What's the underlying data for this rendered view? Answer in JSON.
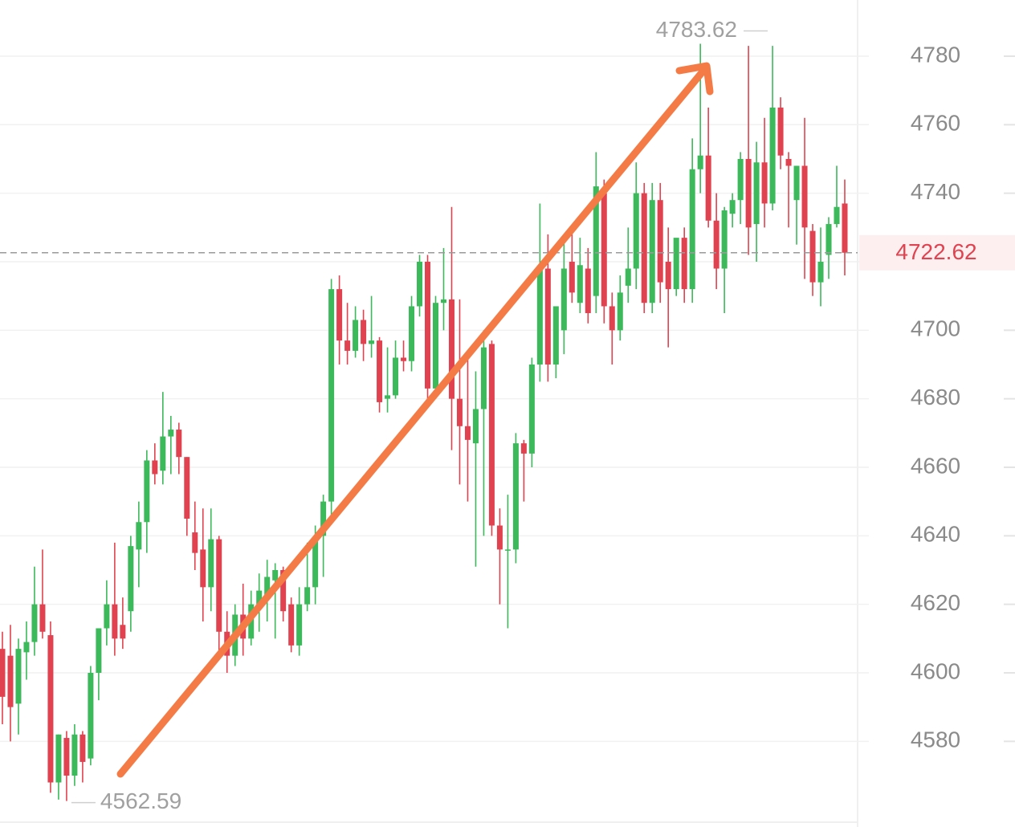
{
  "chart_data": {
    "type": "candlestick",
    "up_color": "#3cb95a",
    "down_color": "#e0434f",
    "ylim": [
      4555,
      4796.4
    ],
    "yticks": [
      4580,
      4600,
      4620,
      4640,
      4660,
      4680,
      4700,
      4720,
      4740,
      4760,
      4780
    ],
    "grid": true,
    "open": [
      4607,
      4605,
      4591,
      4606,
      4609,
      4620,
      4611,
      4568,
      4581,
      4570,
      4582,
      4575,
      4600,
      4613,
      4620,
      4614,
      4618,
      4636,
      4644,
      4662,
      4659,
      4669,
      4671,
      4663,
      4641,
      4636,
      4625,
      4639,
      4612,
      4605,
      4617,
      4610,
      4620,
      4622,
      4627,
      4630,
      4620,
      4608,
      4620,
      4625,
      4640,
      4650,
      4712,
      4697,
      4694,
      4703,
      4696,
      4697,
      4680,
      4681,
      4692,
      4691,
      4707,
      4720,
      4683,
      4708,
      4709,
      4680,
      4672,
      4667,
      4677,
      4696,
      4643,
      4636,
      4636,
      4667,
      4664,
      4690,
      4718,
      4690,
      4700,
      4720,
      4708,
      4718,
      4710,
      4740,
      4707,
      4700,
      4713,
      4718,
      4740,
      4708,
      4738,
      4720,
      4712,
      4727,
      4712,
      4747,
      4751,
      4732,
      4718,
      4734,
      4738,
      4750,
      4731,
      4749,
      4737,
      4765,
      4750,
      4738,
      4748,
      4729,
      4714,
      4722,
      4731,
      4737
    ],
    "high": [
      4612,
      4614,
      4610,
      4615,
      4631,
      4636,
      4615,
      4582,
      4583,
      4585,
      4583,
      4602,
      4613,
      4627,
      4638,
      4622,
      4640,
      4650,
      4665,
      4667,
      4682,
      4675,
      4673,
      4663,
      4650,
      4648,
      4648,
      4640,
      4618,
      4620,
      4626,
      4624,
      4629,
      4633,
      4632,
      4631,
      4622,
      4625,
      4638,
      4643,
      4652,
      4715,
      4716,
      4708,
      4707,
      4706,
      4710,
      4698,
      4695,
      4697,
      4697,
      4710,
      4722,
      4722,
      4710,
      4724,
      4736,
      4709,
      4692,
      4688,
      4700,
      4697,
      4648,
      4652,
      4670,
      4668,
      4692,
      4737,
      4728,
      4706,
      4726,
      4728,
      4727,
      4724,
      4752,
      4744,
      4711,
      4716,
      4730,
      4749,
      4743,
      4743,
      4743,
      4730,
      4726,
      4730,
      4756,
      4783.62,
      4765,
      4740,
      4736,
      4740,
      4752,
      4783,
      4755,
      4762,
      4783,
      4768,
      4752,
      4748,
      4762,
      4731,
      4730,
      4733,
      4748,
      4744
    ],
    "low": [
      4585,
      4580,
      4582,
      4598,
      4605,
      4610,
      4565,
      4563,
      4562.59,
      4567,
      4568,
      4573,
      4592,
      4608,
      4605,
      4607,
      4612,
      4625,
      4635,
      4655,
      4655,
      4658,
      4658,
      4640,
      4630,
      4615,
      4618,
      4605,
      4600,
      4602,
      4605,
      4608,
      4612,
      4615,
      4610,
      4615,
      4606,
      4605,
      4618,
      4620,
      4628,
      4645,
      4690,
      4690,
      4692,
      4691,
      4692,
      4676,
      4676,
      4680,
      4688,
      4688,
      4704,
      4680,
      4680,
      4700,
      4665,
      4655,
      4650,
      4631,
      4640,
      4640,
      4620,
      4613,
      4632,
      4650,
      4660,
      4685,
      4685,
      4686,
      4693,
      4708,
      4705,
      4702,
      4705,
      4702,
      4690,
      4697,
      4708,
      4712,
      4705,
      4705,
      4708,
      4695,
      4710,
      4708,
      4708,
      4740,
      4730,
      4712,
      4705,
      4730,
      4731,
      4722,
      4720,
      4730,
      4735,
      4747,
      4730,
      4725,
      4715,
      4710,
      4707,
      4715,
      4730,
      4716
    ],
    "close": [
      4593,
      4590,
      4607,
      4609,
      4620,
      4612,
      4568,
      4582,
      4570,
      4582,
      4574,
      4600,
      4613,
      4620,
      4610,
      4610,
      4637,
      4644,
      4662,
      4658,
      4669,
      4671,
      4663,
      4645,
      4635,
      4625,
      4639,
      4612,
      4605,
      4617,
      4610,
      4620,
      4624,
      4628,
      4630,
      4618,
      4608,
      4620,
      4625,
      4639,
      4650,
      4712,
      4697,
      4694,
      4703,
      4696,
      4697,
      4679,
      4681,
      4692,
      4691,
      4707,
      4720,
      4683,
      4708,
      4709,
      4680,
      4672,
      4668,
      4677,
      4695,
      4643,
      4636,
      4636,
      4667,
      4664,
      4690,
      4718,
      4690,
      4707,
      4718,
      4711,
      4719,
      4705,
      4742,
      4707,
      4700,
      4711,
      4718,
      4740,
      4708,
      4738,
      4714,
      4712,
      4727,
      4712,
      4747,
      4751,
      4732,
      4718,
      4735,
      4738,
      4750,
      4730,
      4749,
      4737,
      4765,
      4751,
      4748,
      4748,
      4730,
      4714,
      4720,
      4731,
      4736,
      4722.62
    ]
  }
}
